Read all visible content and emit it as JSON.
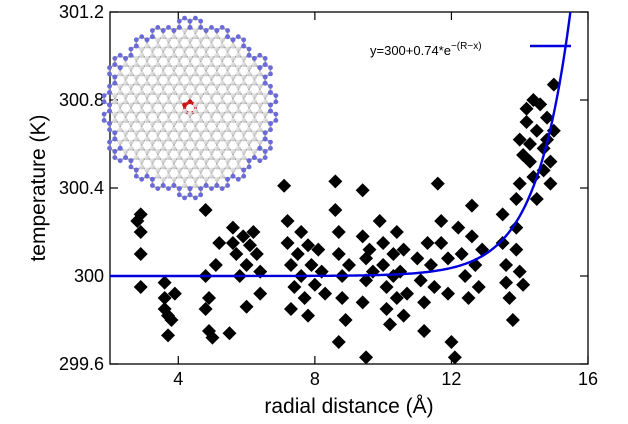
{
  "chart_data": {
    "type": "scatter",
    "xlabel": "radial distance (Å)",
    "ylabel": "temperature (K)",
    "xlim": [
      2,
      16
    ],
    "ylim": [
      299.6,
      301.2
    ],
    "x_ticks": [
      4,
      8,
      12,
      16
    ],
    "y_ticks": [
      299.6,
      300,
      300.4,
      300.8,
      301.2
    ],
    "x_tick_labels": [
      "4",
      "8",
      "12",
      "16"
    ],
    "y_tick_labels": [
      "299.6",
      "300",
      "300.4",
      "300.8",
      "301.2"
    ],
    "marker": "diamond",
    "grid": false,
    "legend": {
      "placement": "top-right",
      "entry_base": "y=300+0.74*e",
      "entry_exponent": "−(R−x)"
    },
    "colors": {
      "points": "#000000",
      "fit_line": "#0000dd"
    },
    "fit_curve": {
      "formula": "y=300+0.74*e^-(R-x)",
      "baseline": 300,
      "amplitude": 0.74,
      "R": 15.0
    },
    "points": [
      [
        2.9,
        300.28
      ],
      [
        2.9,
        300.2
      ],
      [
        2.9,
        300.1
      ],
      [
        2.9,
        299.95
      ],
      [
        2.8,
        300.25
      ],
      [
        3.6,
        299.97
      ],
      [
        3.6,
        299.9
      ],
      [
        3.7,
        299.82
      ],
      [
        3.7,
        299.73
      ],
      [
        3.6,
        299.85
      ],
      [
        3.8,
        299.8
      ],
      [
        3.9,
        299.92
      ],
      [
        4.8,
        300.3
      ],
      [
        4.8,
        300.0
      ],
      [
        4.9,
        299.9
      ],
      [
        4.8,
        299.85
      ],
      [
        4.9,
        299.75
      ],
      [
        5.0,
        299.72
      ],
      [
        5.5,
        299.74
      ],
      [
        5.1,
        300.05
      ],
      [
        5.2,
        300.15
      ],
      [
        5.6,
        300.22
      ],
      [
        5.6,
        300.15
      ],
      [
        5.7,
        300.1
      ],
      [
        5.8,
        300.0
      ],
      [
        5.9,
        300.18
      ],
      [
        6.0,
        300.05
      ],
      [
        6.1,
        300.14
      ],
      [
        6.2,
        300.2
      ],
      [
        6.3,
        300.1
      ],
      [
        6.4,
        300.02
      ],
      [
        6.4,
        299.92
      ],
      [
        6.0,
        299.86
      ],
      [
        7.1,
        300.41
      ],
      [
        7.2,
        300.25
      ],
      [
        7.2,
        300.15
      ],
      [
        7.3,
        300.05
      ],
      [
        7.4,
        299.95
      ],
      [
        7.3,
        299.85
      ],
      [
        7.5,
        300.1
      ],
      [
        7.6,
        300.2
      ],
      [
        7.6,
        300.0
      ],
      [
        7.7,
        299.9
      ],
      [
        7.8,
        300.14
      ],
      [
        7.9,
        300.05
      ],
      [
        7.8,
        299.82
      ],
      [
        8.0,
        299.96
      ],
      [
        8.1,
        300.12
      ],
      [
        8.2,
        300.02
      ],
      [
        8.3,
        299.92
      ],
      [
        8.6,
        300.43
      ],
      [
        8.6,
        300.3
      ],
      [
        8.7,
        300.2
      ],
      [
        8.7,
        300.1
      ],
      [
        8.8,
        300.0
      ],
      [
        8.8,
        299.9
      ],
      [
        8.9,
        299.8
      ],
      [
        8.7,
        299.7
      ],
      [
        9.0,
        300.05
      ],
      [
        9.4,
        300.39
      ],
      [
        9.4,
        300.18
      ],
      [
        9.5,
        300.08
      ],
      [
        9.5,
        299.98
      ],
      [
        9.4,
        299.88
      ],
      [
        9.5,
        299.63
      ],
      [
        9.6,
        300.12
      ],
      [
        9.7,
        300.02
      ],
      [
        9.9,
        300.25
      ],
      [
        10.0,
        300.15
      ],
      [
        10.0,
        300.05
      ],
      [
        10.1,
        299.95
      ],
      [
        10.1,
        299.85
      ],
      [
        10.2,
        299.78
      ],
      [
        10.3,
        300.1
      ],
      [
        10.3,
        300.0
      ],
      [
        10.4,
        299.9
      ],
      [
        10.4,
        300.2
      ],
      [
        10.5,
        300.02
      ],
      [
        10.6,
        300.12
      ],
      [
        10.7,
        299.92
      ],
      [
        10.6,
        299.82
      ],
      [
        11.0,
        300.08
      ],
      [
        11.1,
        299.98
      ],
      [
        11.2,
        299.88
      ],
      [
        11.2,
        299.75
      ],
      [
        11.3,
        300.15
      ],
      [
        11.4,
        300.05
      ],
      [
        11.5,
        299.95
      ],
      [
        11.6,
        300.42
      ],
      [
        11.7,
        300.25
      ],
      [
        11.7,
        300.15
      ],
      [
        11.9,
        300.08
      ],
      [
        11.9,
        299.92
      ],
      [
        12.0,
        299.7
      ],
      [
        12.1,
        299.63
      ],
      [
        12.2,
        300.22
      ],
      [
        12.3,
        300.1
      ],
      [
        12.4,
        300.0
      ],
      [
        12.5,
        299.9
      ],
      [
        12.6,
        300.32
      ],
      [
        12.6,
        300.18
      ],
      [
        12.7,
        300.05
      ],
      [
        12.8,
        299.95
      ],
      [
        12.9,
        300.12
      ],
      [
        13.5,
        300.28
      ],
      [
        13.5,
        300.15
      ],
      [
        13.6,
        300.05
      ],
      [
        13.6,
        299.97
      ],
      [
        13.7,
        299.9
      ],
      [
        13.8,
        299.8
      ],
      [
        13.9,
        300.22
      ],
      [
        13.9,
        300.12
      ],
      [
        14.0,
        300.02
      ],
      [
        14.1,
        299.96
      ],
      [
        13.9,
        300.35
      ],
      [
        14.0,
        300.42
      ],
      [
        14.1,
        300.55
      ],
      [
        14.0,
        300.62
      ],
      [
        14.2,
        300.7
      ],
      [
        14.3,
        300.6
      ],
      [
        14.3,
        300.52
      ],
      [
        14.4,
        300.45
      ],
      [
        14.5,
        300.66
      ],
      [
        14.2,
        300.76
      ],
      [
        14.6,
        300.78
      ],
      [
        14.7,
        300.58
      ],
      [
        14.7,
        300.48
      ],
      [
        14.8,
        300.72
      ],
      [
        14.8,
        300.62
      ],
      [
        14.9,
        300.52
      ],
      [
        14.9,
        300.42
      ],
      [
        15.0,
        300.66
      ],
      [
        15.0,
        300.87
      ],
      [
        14.5,
        300.35
      ],
      [
        14.4,
        300.8
      ]
    ]
  }
}
